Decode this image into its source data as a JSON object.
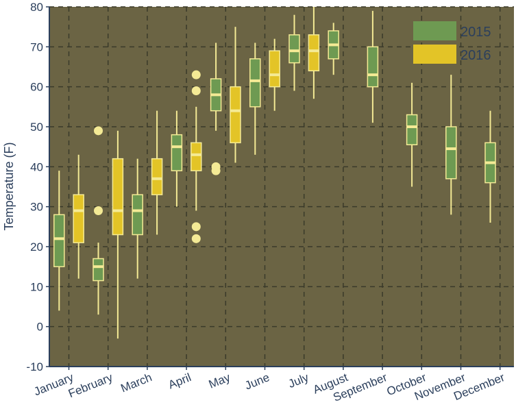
{
  "chart_data": {
    "type": "box",
    "title": "",
    "xlabel": "",
    "ylabel": "Temperature (F)",
    "ylim": [
      -10,
      80
    ],
    "yticks": [
      -10,
      0,
      10,
      20,
      30,
      40,
      50,
      60,
      70,
      80
    ],
    "grid": true,
    "legend_position": "top-right",
    "categories": [
      "January",
      "February",
      "March",
      "April",
      "May",
      "June",
      "July",
      "August",
      "September",
      "October",
      "November",
      "December"
    ],
    "series": [
      {
        "name": "2015",
        "color": "#6e9a52",
        "boxes": [
          {
            "category": "January",
            "min": 4,
            "q1": 15,
            "median": 22,
            "q3": 28,
            "max": 39,
            "outliers": []
          },
          {
            "category": "February",
            "min": 3,
            "q1": 11.5,
            "median": 15,
            "q3": 17,
            "max": 21,
            "outliers": [
              29,
              49
            ]
          },
          {
            "category": "March",
            "min": 12,
            "q1": 23,
            "median": 29,
            "q3": 33,
            "max": 42,
            "outliers": []
          },
          {
            "category": "April",
            "min": 30,
            "q1": 39,
            "median": 45,
            "q3": 48,
            "max": 54,
            "outliers": []
          },
          {
            "category": "May",
            "min": 49,
            "q1": 54,
            "median": 58,
            "q3": 62,
            "max": 71,
            "outliers": [
              39,
              40
            ]
          },
          {
            "category": "June",
            "min": 43,
            "q1": 55,
            "median": 61.5,
            "q3": 67,
            "max": 71,
            "outliers": []
          },
          {
            "category": "July",
            "min": 59,
            "q1": 66,
            "median": 69,
            "q3": 73,
            "max": 78,
            "outliers": []
          },
          {
            "category": "August",
            "min": 63,
            "q1": 67,
            "median": 70.5,
            "q3": 74,
            "max": 76,
            "outliers": []
          },
          {
            "category": "September",
            "min": 51,
            "q1": 60,
            "median": 63,
            "q3": 70,
            "max": 79,
            "outliers": []
          },
          {
            "category": "October",
            "min": 35,
            "q1": 45.5,
            "median": 50,
            "q3": 53,
            "max": 61,
            "outliers": []
          },
          {
            "category": "November",
            "min": 28,
            "q1": 37,
            "median": 44.5,
            "q3": 50,
            "max": 63,
            "outliers": []
          },
          {
            "category": "December",
            "min": 26,
            "q1": 36,
            "median": 41,
            "q3": 46,
            "max": 54,
            "outliers": []
          }
        ]
      },
      {
        "name": "2016",
        "color": "#e3c427",
        "boxes": [
          {
            "category": "January",
            "min": 12,
            "q1": 21,
            "median": 29,
            "q3": 33,
            "max": 43,
            "outliers": []
          },
          {
            "category": "February",
            "min": -3,
            "q1": 23,
            "median": 29,
            "q3": 42,
            "max": 49,
            "outliers": []
          },
          {
            "category": "March",
            "min": 23,
            "q1": 33,
            "median": 37,
            "q3": 42,
            "max": 54,
            "outliers": []
          },
          {
            "category": "April",
            "min": 29,
            "q1": 39,
            "median": 43,
            "q3": 46,
            "max": 55,
            "outliers": [
              22,
              25,
              59,
              63
            ]
          },
          {
            "category": "May",
            "min": 41,
            "q1": 46,
            "median": 54,
            "q3": 60,
            "max": 75,
            "outliers": []
          },
          {
            "category": "June",
            "min": 54,
            "q1": 60,
            "median": 63,
            "q3": 69,
            "max": 72,
            "outliers": []
          },
          {
            "category": "July",
            "min": 57,
            "q1": 64,
            "median": 69,
            "q3": 73,
            "max": 80,
            "outliers": []
          }
        ]
      }
    ]
  }
}
